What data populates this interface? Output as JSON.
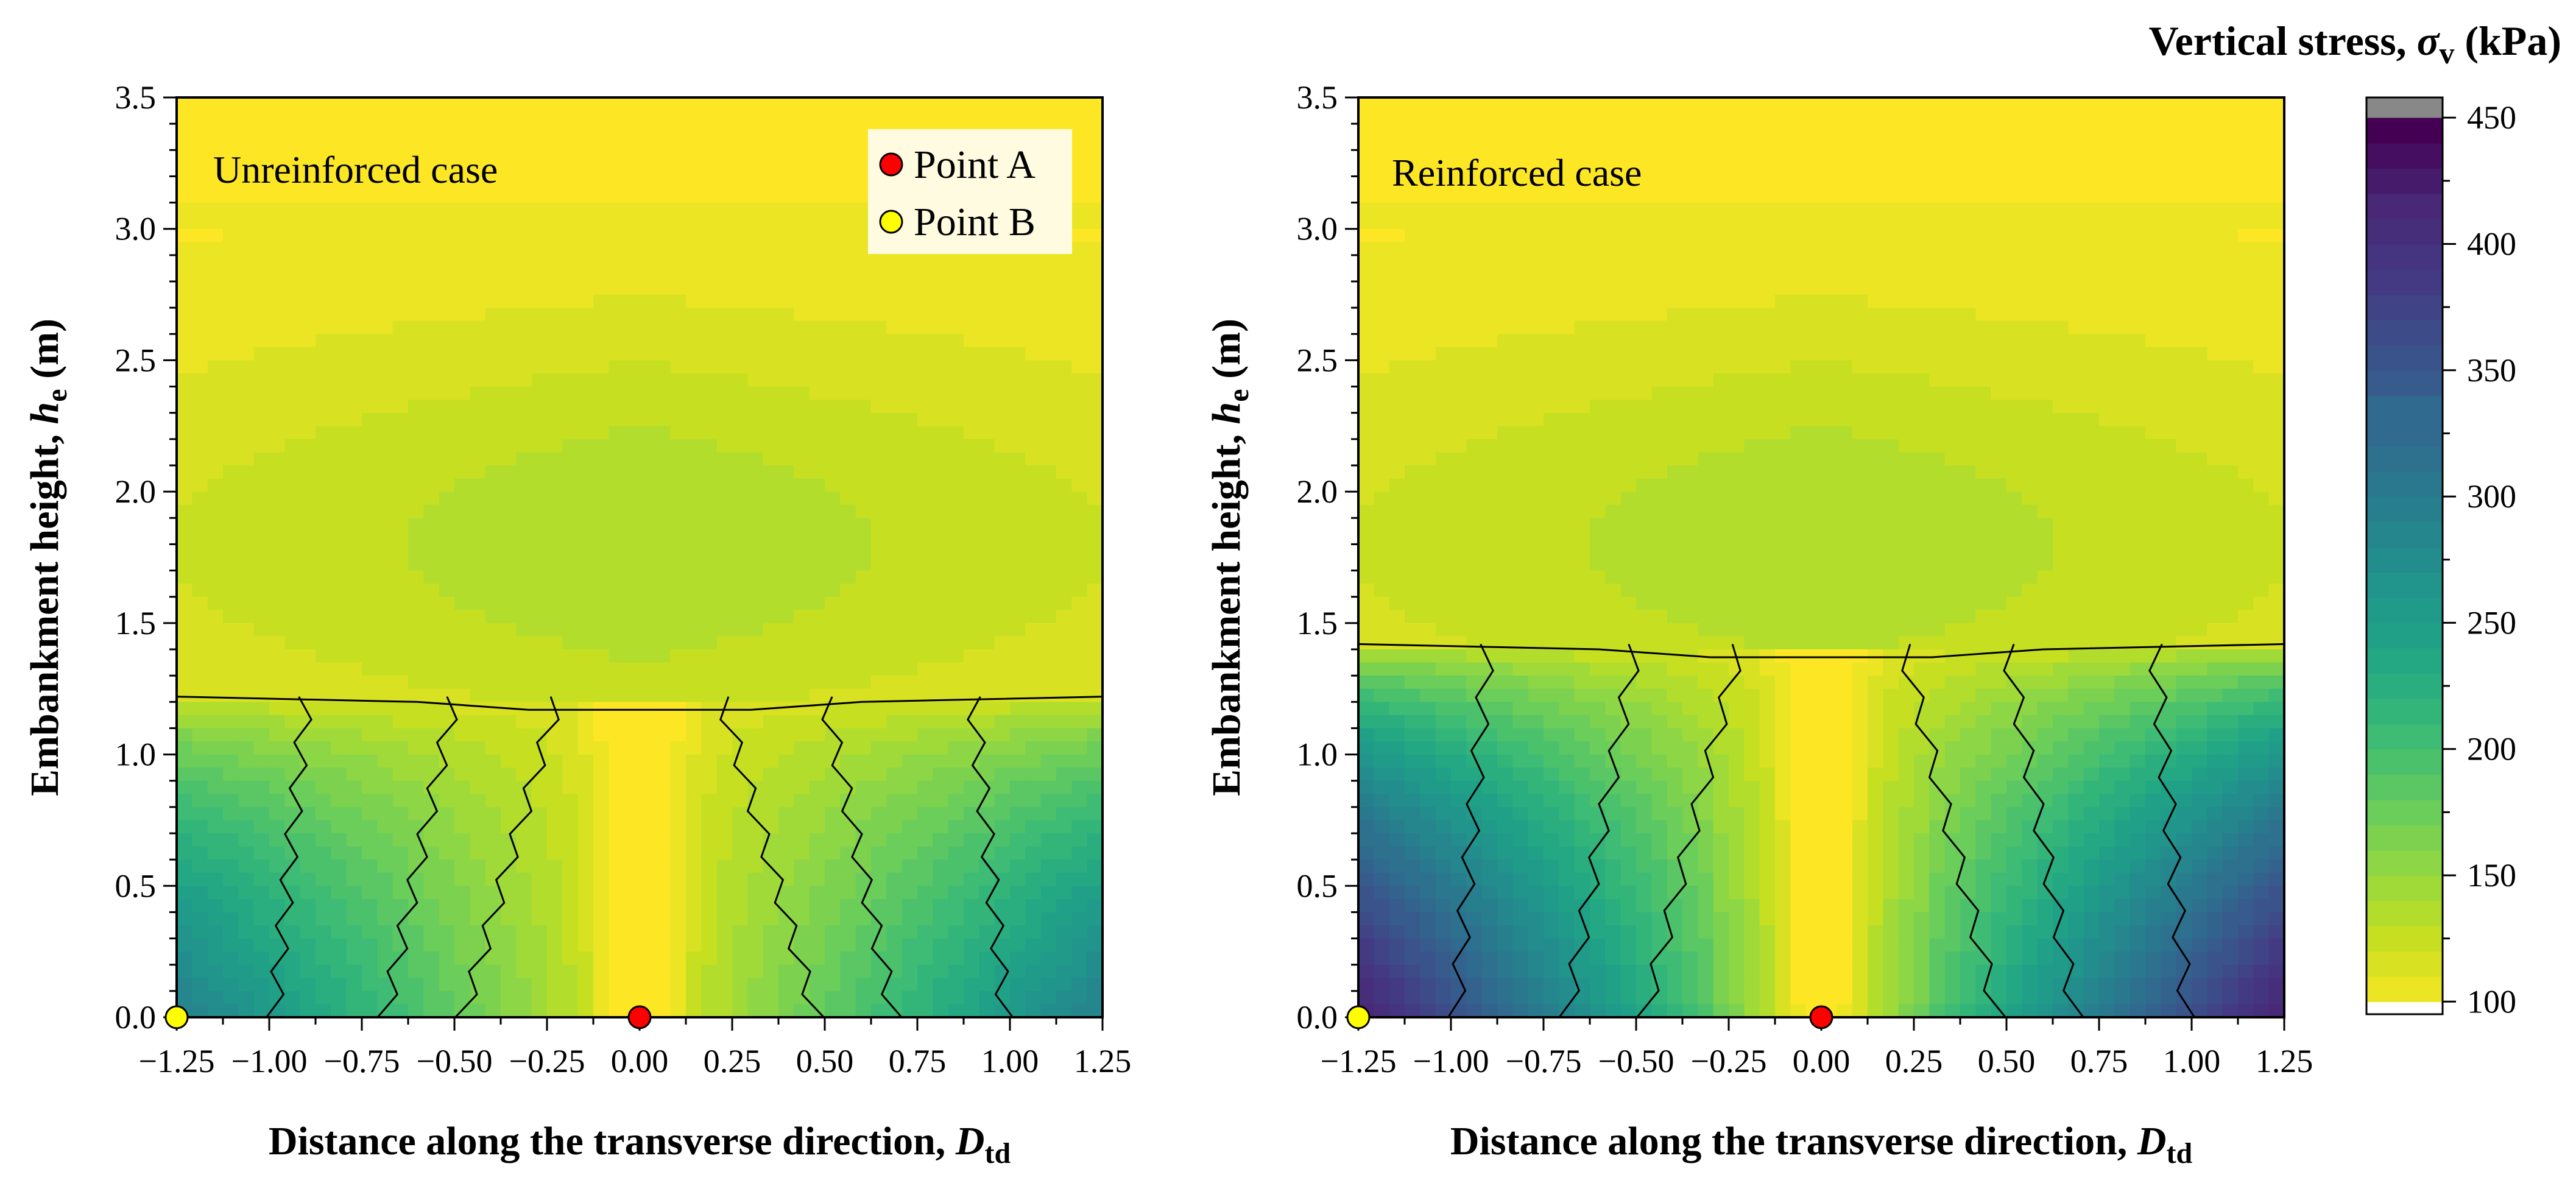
{
  "chart_data": [
    {
      "type": "heatmap",
      "panel": "left",
      "case_label": "Unreinforced case",
      "xlabel": "Distance along the transverse direction, ",
      "xlabel_symbol": "D",
      "xlabel_sub": "td",
      "ylabel": "Embankment height, ",
      "ylabel_symbol": "h",
      "ylabel_sub": "e",
      "ylabel_unit": " (m)",
      "xlim": [
        -1.25,
        1.25
      ],
      "ylim": [
        0,
        3.5
      ],
      "x_ticks": [
        "−1.25",
        "−1.00",
        "−0.75",
        "−0.50",
        "−0.25",
        "0.00",
        "0.25",
        "0.50",
        "0.75",
        "1.00",
        "1.25"
      ],
      "y_ticks": [
        "0.0",
        "0.5",
        "1.0",
        "1.5",
        "2.0",
        "2.5",
        "3.0",
        "3.5"
      ],
      "reinforcement_layer_height": 1.22,
      "min_stress_kPa": 100,
      "max_stress_kPa": 300,
      "points": [
        {
          "name": "Point A",
          "x": 0.0,
          "y": 0.0,
          "color": "#ff0000"
        },
        {
          "name": "Point B",
          "x": -1.25,
          "y": 0.0,
          "color": "#ffff00"
        }
      ],
      "legend": [
        "Point A",
        "Point B"
      ]
    },
    {
      "type": "heatmap",
      "panel": "right",
      "case_label": "Reinforced case",
      "xlabel": "Distance along the transverse direction, ",
      "xlabel_symbol": "D",
      "xlabel_sub": "td",
      "ylabel": "Embankment height, ",
      "ylabel_symbol": "h",
      "ylabel_sub": "e",
      "ylabel_unit": " (m)",
      "xlim": [
        -1.25,
        1.25
      ],
      "ylim": [
        0,
        3.5
      ],
      "x_ticks": [
        "−1.25",
        "−1.00",
        "−0.75",
        "−0.50",
        "−0.25",
        "0.00",
        "0.25",
        "0.50",
        "0.75",
        "1.00",
        "1.25"
      ],
      "y_ticks": [
        "0.0",
        "0.5",
        "1.0",
        "1.5",
        "2.0",
        "2.5",
        "3.0",
        "3.5"
      ],
      "reinforcement_layer_height": 1.42,
      "min_stress_kPa": 100,
      "max_stress_kPa": 420,
      "points": [
        {
          "name": "Point A",
          "x": 0.0,
          "y": 0.0,
          "color": "#ff0000"
        },
        {
          "name": "Point B",
          "x": -1.25,
          "y": 0.0,
          "color": "#ffff00"
        }
      ]
    }
  ],
  "colorbar": {
    "title": "Vertical stress, ",
    "title_symbol": "σ",
    "title_sub": "v",
    "title_unit": " (kPa)",
    "range": [
      95,
      458
    ],
    "ticks": [
      "100",
      "150",
      "200",
      "250",
      "300",
      "350",
      "400",
      "450"
    ],
    "colormap": [
      "#fde725",
      "#c8e020",
      "#90d743",
      "#5ec962",
      "#35b779",
      "#20a486",
      "#21918c",
      "#287c8e",
      "#31688e",
      "#3b528b",
      "#443983",
      "#482777",
      "#440154"
    ],
    "over_color": "#888888",
    "under_color": "#ffffff"
  }
}
